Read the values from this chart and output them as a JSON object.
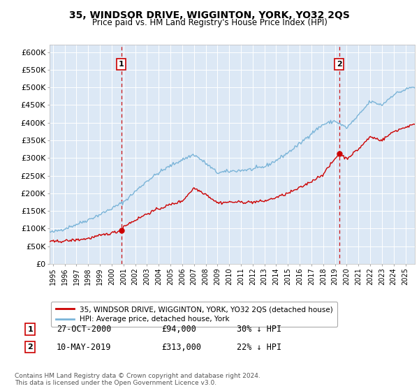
{
  "title": "35, WINDSOR DRIVE, WIGGINTON, YORK, YO32 2QS",
  "subtitle": "Price paid vs. HM Land Registry's House Price Index (HPI)",
  "ylabel_ticks": [
    "£0",
    "£50K",
    "£100K",
    "£150K",
    "£200K",
    "£250K",
    "£300K",
    "£350K",
    "£400K",
    "£450K",
    "£500K",
    "£550K",
    "£600K"
  ],
  "ytick_values": [
    0,
    50000,
    100000,
    150000,
    200000,
    250000,
    300000,
    350000,
    400000,
    450000,
    500000,
    550000,
    600000
  ],
  "ylim": [
    0,
    620000
  ],
  "xlim_start": 1994.7,
  "xlim_end": 2025.8,
  "sale1_x": 2000.82,
  "sale1_y": 94000,
  "sale1_label": "1",
  "sale1_date": "27-OCT-2000",
  "sale1_price": "£94,000",
  "sale1_hpi": "30% ↓ HPI",
  "sale2_x": 2019.36,
  "sale2_y": 313000,
  "sale2_label": "2",
  "sale2_date": "10-MAY-2019",
  "sale2_price": "£313,000",
  "sale2_hpi": "22% ↓ HPI",
  "hpi_color": "#7ab4d8",
  "sale_color": "#cc0000",
  "dashed_line_color": "#cc0000",
  "background_color": "#dce8f5",
  "legend_label1": "35, WINDSOR DRIVE, WIGGINTON, YORK, YO32 2QS (detached house)",
  "legend_label2": "HPI: Average price, detached house, York",
  "footer": "Contains HM Land Registry data © Crown copyright and database right 2024.\nThis data is licensed under the Open Government Licence v3.0.",
  "hpi_anchors_x": [
    1995,
    1996,
    1997,
    1998,
    1999,
    2000,
    2001,
    2002,
    2003,
    2004,
    2005,
    2006,
    2007,
    2008,
    2009,
    2010,
    2011,
    2012,
    2013,
    2014,
    2015,
    2016,
    2017,
    2018,
    2019,
    2020,
    2021,
    2022,
    2023,
    2024,
    2025.5
  ],
  "hpi_anchors_y": [
    90000,
    100000,
    112000,
    125000,
    140000,
    157000,
    175000,
    205000,
    235000,
    258000,
    278000,
    295000,
    310000,
    285000,
    258000,
    262000,
    265000,
    268000,
    275000,
    293000,
    315000,
    340000,
    370000,
    395000,
    405000,
    385000,
    420000,
    460000,
    450000,
    480000,
    500000
  ],
  "sale_anchors_x": [
    1995,
    1996,
    1997,
    1998,
    1999,
    2000.82,
    2001,
    2002,
    2003,
    2004,
    2005,
    2006,
    2007,
    2008,
    2009,
    2010,
    2011,
    2012,
    2013,
    2014,
    2015,
    2016,
    2017,
    2018,
    2019.36,
    2020,
    2021,
    2022,
    2023,
    2024,
    2025.5
  ],
  "sale_anchors_y": [
    63000,
    65000,
    68000,
    72000,
    80000,
    94000,
    106000,
    124000,
    142000,
    156000,
    168000,
    178000,
    215000,
    198000,
    173000,
    175000,
    175000,
    175000,
    178000,
    188000,
    200000,
    215000,
    234000,
    254000,
    313000,
    298000,
    325000,
    360000,
    350000,
    375000,
    393000
  ],
  "noise_seed": 42,
  "noise_scale_hpi": 2500,
  "noise_scale_sale": 2000
}
